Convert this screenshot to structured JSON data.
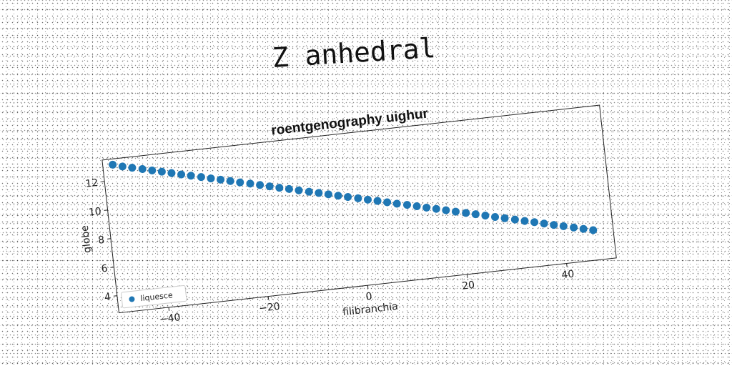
{
  "figure_title": "Z anhedral",
  "chart_data": {
    "type": "scatter",
    "title": "roentgenography uighur",
    "xlabel": "filibranchia",
    "ylabel": "globe",
    "xlim": [
      -50,
      50
    ],
    "ylim": [
      2.8,
      13.5
    ],
    "xticks": [
      "−40",
      "−20",
      "0",
      "20",
      "40"
    ],
    "xtick_values": [
      -40,
      -20,
      0,
      20,
      40
    ],
    "yticks": [
      "4",
      "6",
      "8",
      "10",
      "12"
    ],
    "ytick_values": [
      4,
      6,
      8,
      10,
      12
    ],
    "grid": false,
    "legend_position": "bottom-left",
    "series": [
      {
        "name": "liquesce",
        "color": "#1f77b4",
        "x": [
          -48,
          -46.1,
          -44.2,
          -42.2,
          -40.3,
          -38.4,
          -36.5,
          -34.6,
          -32.7,
          -30.7,
          -28.8,
          -26.9,
          -25,
          -23.1,
          -21.1,
          -19.2,
          -17.3,
          -15.4,
          -13.5,
          -11.6,
          -9.6,
          -7.7,
          -5.8,
          -3.9,
          -2,
          0,
          1.9,
          3.8,
          5.7,
          7.6,
          9.6,
          11.5,
          13.4,
          15.3,
          17.2,
          19.1,
          21.1,
          23,
          24.9,
          26.8,
          28.7,
          30.7,
          32.6,
          34.5,
          36.4,
          38.3,
          40.2,
          42.2,
          44.1,
          46
        ],
        "y": [
          13.1,
          12.9,
          12.74,
          12.57,
          12.4,
          12.24,
          12.07,
          11.9,
          11.74,
          11.57,
          11.4,
          11.24,
          11.07,
          10.9,
          10.74,
          10.57,
          10.4,
          10.23,
          10.07,
          9.9,
          9.73,
          9.57,
          9.4,
          9.23,
          9.07,
          8.9,
          8.73,
          8.57,
          8.4,
          8.23,
          8.07,
          7.9,
          7.73,
          7.57,
          7.4,
          7.23,
          7.06,
          6.9,
          6.73,
          6.56,
          6.4,
          6.23,
          6.06,
          5.9,
          5.73,
          5.56,
          5.4,
          5.23,
          5.06,
          4.9
        ]
      }
    ]
  }
}
